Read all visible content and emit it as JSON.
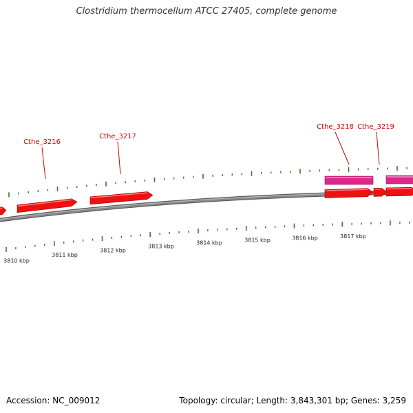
{
  "title": "Clostridium thermocellum ATCC 27405, complete genome",
  "footer": {
    "accession": "Accession: NC_009012",
    "stats": "Topology: circular; Length: 3,843,301 bp; Genes: 3,259"
  },
  "colors": {
    "backbone": "#888888",
    "gene_forward": "#ee1111",
    "gene_pink": "#e0268a",
    "tick": "#2e7d1e",
    "gene_label": "#cc0000"
  },
  "scale_labels": [
    "3810 kbp",
    "3811 kbp",
    "3812 kbp",
    "3813 kbp",
    "3814 kbp",
    "3815 kbp",
    "3816 kbp",
    "3817 kbp"
  ],
  "gene_labels": [
    "Cthe_3216",
    "Cthe_3217",
    "Cthe_3218",
    "Cthe_3219"
  ]
}
